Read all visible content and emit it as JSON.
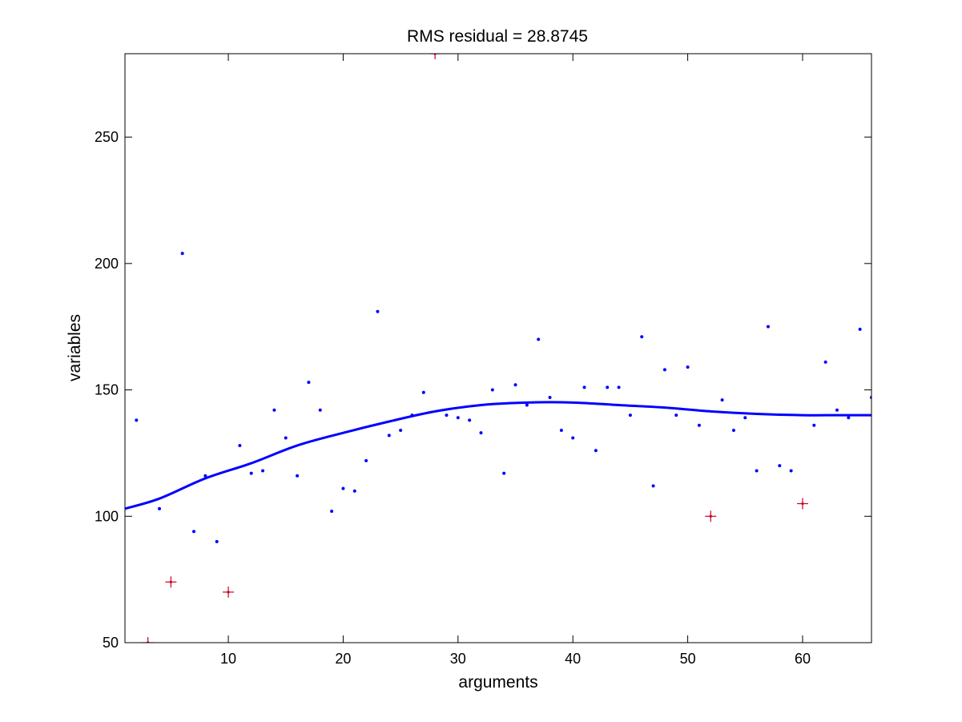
{
  "colors": {
    "background": "#ffffff",
    "axes": "#000000",
    "fit_line": "#0000ff",
    "inlier_marker": "#0000ff",
    "outlier_marker": "#cc0022"
  },
  "chart_data": {
    "type": "scatter",
    "title": "RMS residual = 28.8745",
    "xlabel": "arguments",
    "ylabel": "variables",
    "xlim": [
      1,
      66
    ],
    "ylim": [
      50,
      283
    ],
    "xticks": [
      10,
      20,
      30,
      40,
      50,
      60
    ],
    "yticks": [
      50,
      100,
      150,
      200,
      250
    ],
    "grid": false,
    "legend": "none",
    "series": [
      {
        "kind": "points",
        "marker": "dot",
        "x": [
          2,
          4,
          6,
          7,
          8,
          9,
          11,
          12,
          13,
          14,
          15,
          16,
          17,
          18,
          19,
          20,
          21,
          22,
          23,
          24,
          25,
          26,
          27,
          29,
          30,
          31,
          32,
          33,
          34,
          35,
          36,
          37,
          38,
          39,
          40,
          41,
          42,
          43,
          44,
          45,
          46,
          47,
          48,
          49,
          50,
          51,
          53,
          54,
          55,
          56,
          57,
          58,
          59,
          61,
          62,
          63,
          64,
          65,
          66
        ],
        "y": [
          138,
          103,
          204,
          94,
          116,
          90,
          128,
          117,
          118,
          142,
          131,
          116,
          153,
          142,
          102,
          111,
          110,
          122,
          181,
          132,
          134,
          140,
          149,
          140,
          139,
          138,
          133,
          150,
          117,
          152,
          144,
          170,
          147,
          134,
          131,
          151,
          126,
          151,
          151,
          140,
          171,
          112,
          158,
          140,
          159,
          136,
          146,
          134,
          139,
          118,
          175,
          120,
          118,
          136,
          161,
          142,
          139,
          174,
          147
        ]
      },
      {
        "kind": "points",
        "marker": "cross",
        "x": [
          3,
          5,
          10,
          28,
          52,
          60
        ],
        "y": [
          50,
          74,
          70,
          283,
          100,
          105
        ]
      },
      {
        "kind": "line",
        "x": [
          1,
          4,
          8,
          12,
          16,
          20,
          24,
          28,
          32,
          36,
          40,
          44,
          48,
          52,
          56,
          60,
          63,
          66
        ],
        "y": [
          103,
          107,
          115,
          121,
          128,
          133,
          137.5,
          141.5,
          144,
          145,
          145,
          144,
          143,
          141.5,
          140.5,
          140,
          140,
          140
        ]
      }
    ]
  }
}
